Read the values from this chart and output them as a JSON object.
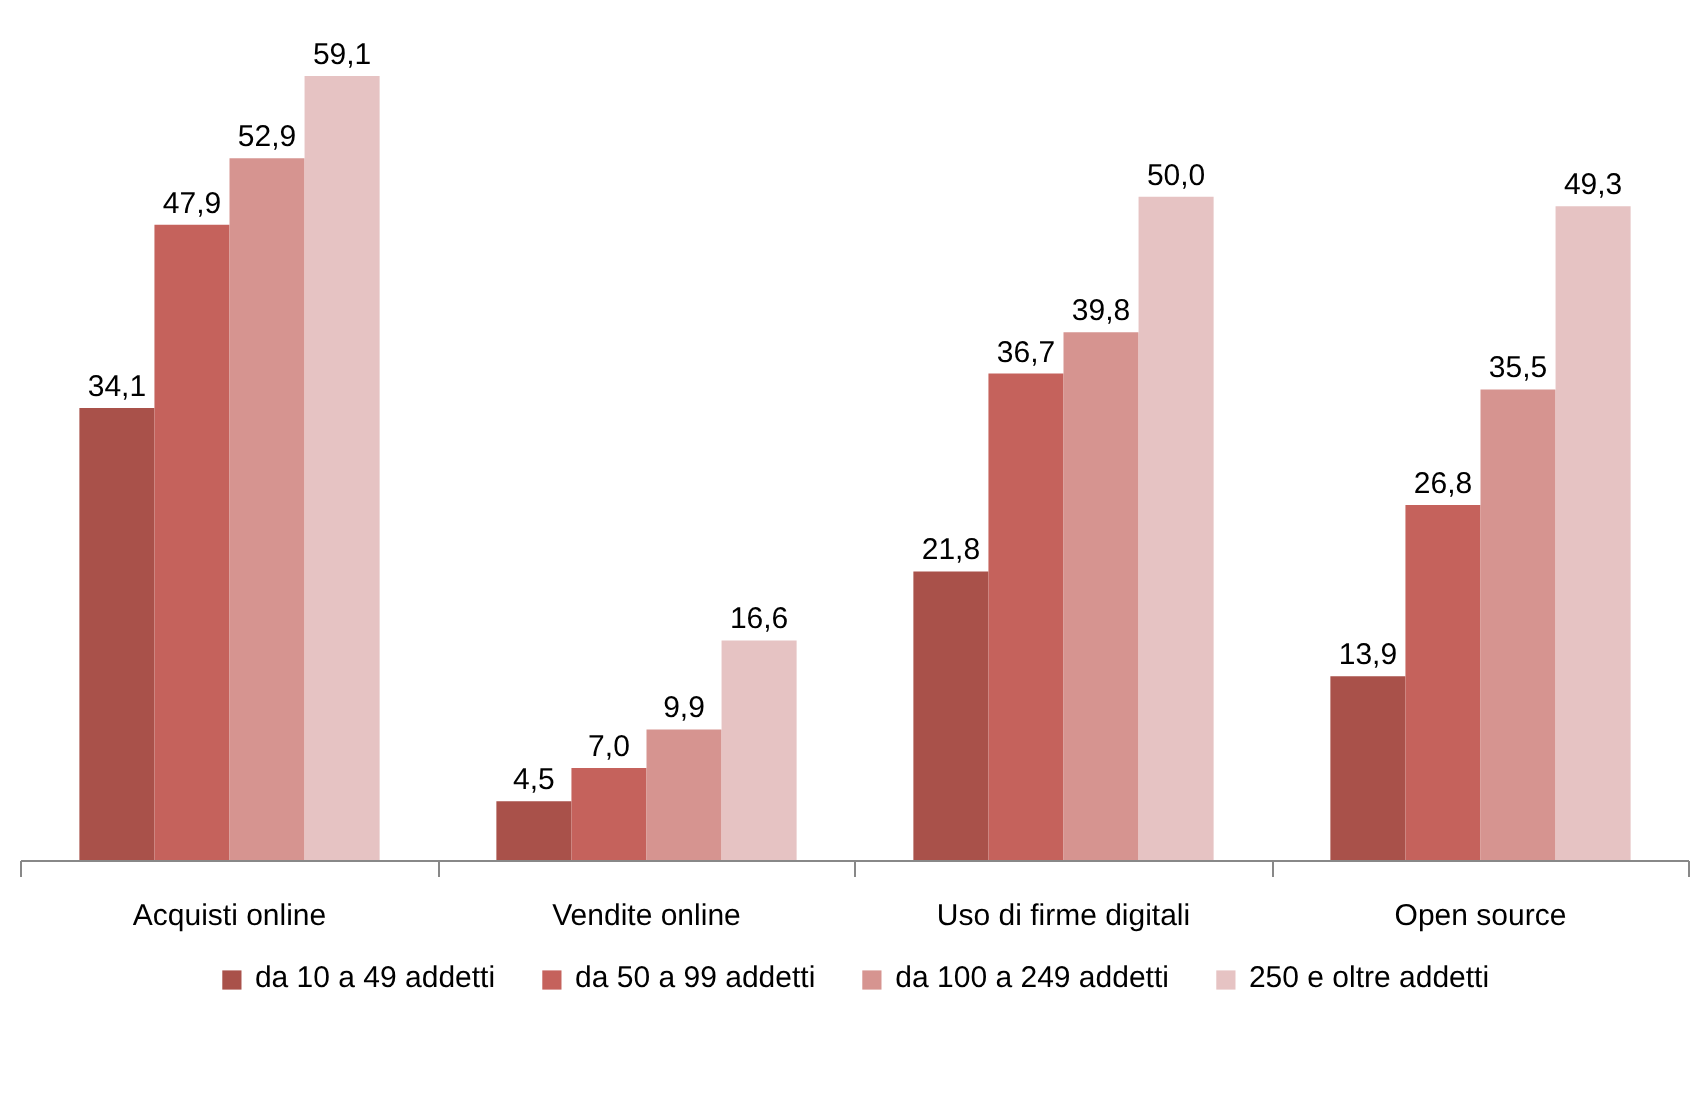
{
  "chart_data": {
    "type": "bar",
    "categories": [
      "Acquisti online",
      "Vendite online",
      "Uso di firme digitali",
      "Open source"
    ],
    "legend": "bottom",
    "series": [
      {
        "name": "da 10 a 49 addetti",
        "color": "#a9514a",
        "values": [
          34.1,
          4.5,
          21.8,
          13.9
        ],
        "value_labels": [
          "34,1",
          "4,5",
          "21,8",
          "13,9"
        ]
      },
      {
        "name": "da 50 a 99 addetti",
        "color": "#c5625c",
        "values": [
          47.9,
          7.0,
          36.7,
          26.8
        ],
        "value_labels": [
          "47,9",
          "7,0",
          "36,7",
          "26,8"
        ]
      },
      {
        "name": "da 100 a 249 addetti",
        "color": "#d69490",
        "values": [
          52.9,
          9.9,
          39.8,
          35.5
        ],
        "value_labels": [
          "52,9",
          "9,9",
          "39,8",
          "35,5"
        ]
      },
      {
        "name": "250 e oltre addetti",
        "color": "#e6c3c3",
        "values": [
          59.1,
          16.6,
          50.0,
          49.3
        ],
        "value_labels": [
          "59,1",
          "16,6",
          "50,0",
          "49,3"
        ]
      }
    ]
  }
}
